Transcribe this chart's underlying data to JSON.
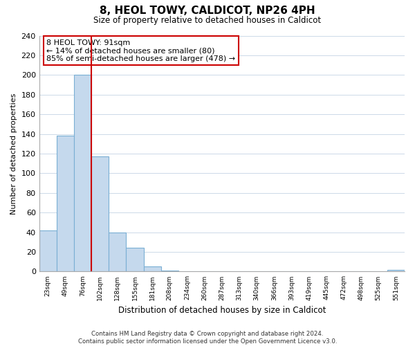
{
  "title": "8, HEOL TOWY, CALDICOT, NP26 4PH",
  "subtitle": "Size of property relative to detached houses in Caldicot",
  "xlabel": "Distribution of detached houses by size in Caldicot",
  "ylabel": "Number of detached properties",
  "bar_labels": [
    "23sqm",
    "49sqm",
    "76sqm",
    "102sqm",
    "128sqm",
    "155sqm",
    "181sqm",
    "208sqm",
    "234sqm",
    "260sqm",
    "287sqm",
    "313sqm",
    "340sqm",
    "366sqm",
    "393sqm",
    "419sqm",
    "445sqm",
    "472sqm",
    "498sqm",
    "525sqm",
    "551sqm"
  ],
  "bar_values": [
    42,
    138,
    200,
    117,
    40,
    24,
    5,
    1,
    0,
    0,
    0,
    0,
    0,
    0,
    0,
    0,
    0,
    0,
    0,
    0,
    2
  ],
  "bar_color": "#c5d9ed",
  "bar_edge_color": "#7aafd4",
  "vline_color": "#cc0000",
  "vline_x_idx": 2.5,
  "ylim": [
    0,
    240
  ],
  "yticks": [
    0,
    20,
    40,
    60,
    80,
    100,
    120,
    140,
    160,
    180,
    200,
    220,
    240
  ],
  "annotation_title": "8 HEOL TOWY: 91sqm",
  "annotation_line1": "← 14% of detached houses are smaller (80)",
  "annotation_line2": "85% of semi-detached houses are larger (478) →",
  "annotation_box_color": "#ffffff",
  "annotation_box_edge_color": "#cc0000",
  "footer_line1": "Contains HM Land Registry data © Crown copyright and database right 2024.",
  "footer_line2": "Contains public sector information licensed under the Open Government Licence v3.0.",
  "bg_color": "#ffffff",
  "grid_color": "#ccd9e8"
}
